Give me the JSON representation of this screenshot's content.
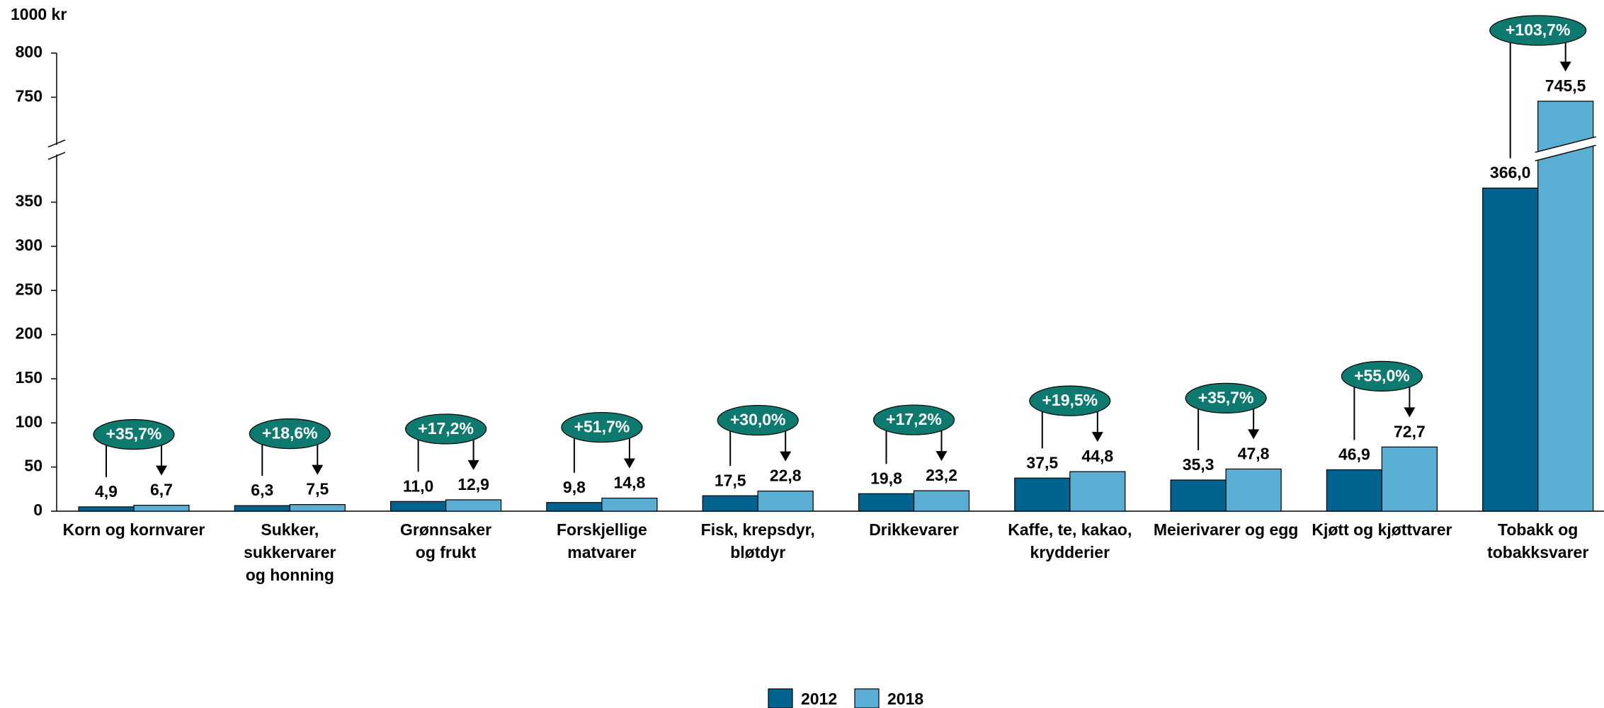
{
  "chart_data": {
    "type": "bar",
    "y_label": "1000 kr",
    "categories": [
      [
        "Korn og kornvarer"
      ],
      [
        "Sukker,",
        "sukkervarer",
        "og honning"
      ],
      [
        "Grønnsaker",
        "og frukt"
      ],
      [
        "Forskjellige",
        "matvarer"
      ],
      [
        "Fisk, krepsdyr,",
        "bløtdyr"
      ],
      [
        "Drikkevarer"
      ],
      [
        "Kaffe, te, kakao,",
        "krydderier"
      ],
      [
        "Meierivarer og egg"
      ],
      [
        "Kjøtt og kjøttvarer"
      ],
      [
        "Tobakk og",
        "tobakksvarer"
      ]
    ],
    "series": [
      {
        "name": "2012",
        "color": "#00628f",
        "values": [
          4.9,
          6.3,
          11.0,
          9.8,
          17.5,
          19.8,
          37.5,
          35.3,
          46.9,
          366.0
        ],
        "value_labels": [
          "4,9",
          "6,3",
          "11,0",
          "9,8",
          "17,5",
          "19,8",
          "37,5",
          "35,3",
          "46,9",
          "366,0"
        ]
      },
      {
        "name": "2018",
        "color": "#5aaed4",
        "values": [
          6.7,
          7.5,
          12.9,
          14.8,
          22.8,
          23.2,
          44.8,
          47.8,
          72.7,
          745.5
        ],
        "value_labels": [
          "6,7",
          "7,5",
          "12,9",
          "14,8",
          "22,8",
          "23,2",
          "44,8",
          "47,8",
          "72,7",
          "745,5"
        ]
      }
    ],
    "changes": [
      "+35,7%",
      "+18,6%",
      "+17,2%",
      "+51,7%",
      "+30,0%",
      "+17,2%",
      "+19,5%",
      "+35,7%",
      "+55,0%",
      "+103,7%"
    ],
    "ylim": [
      0,
      800
    ],
    "ybreak": [
      400,
      700
    ],
    "yticks": [
      0,
      50,
      100,
      150,
      200,
      250,
      300,
      350,
      750,
      800
    ],
    "legend": "bottom"
  }
}
